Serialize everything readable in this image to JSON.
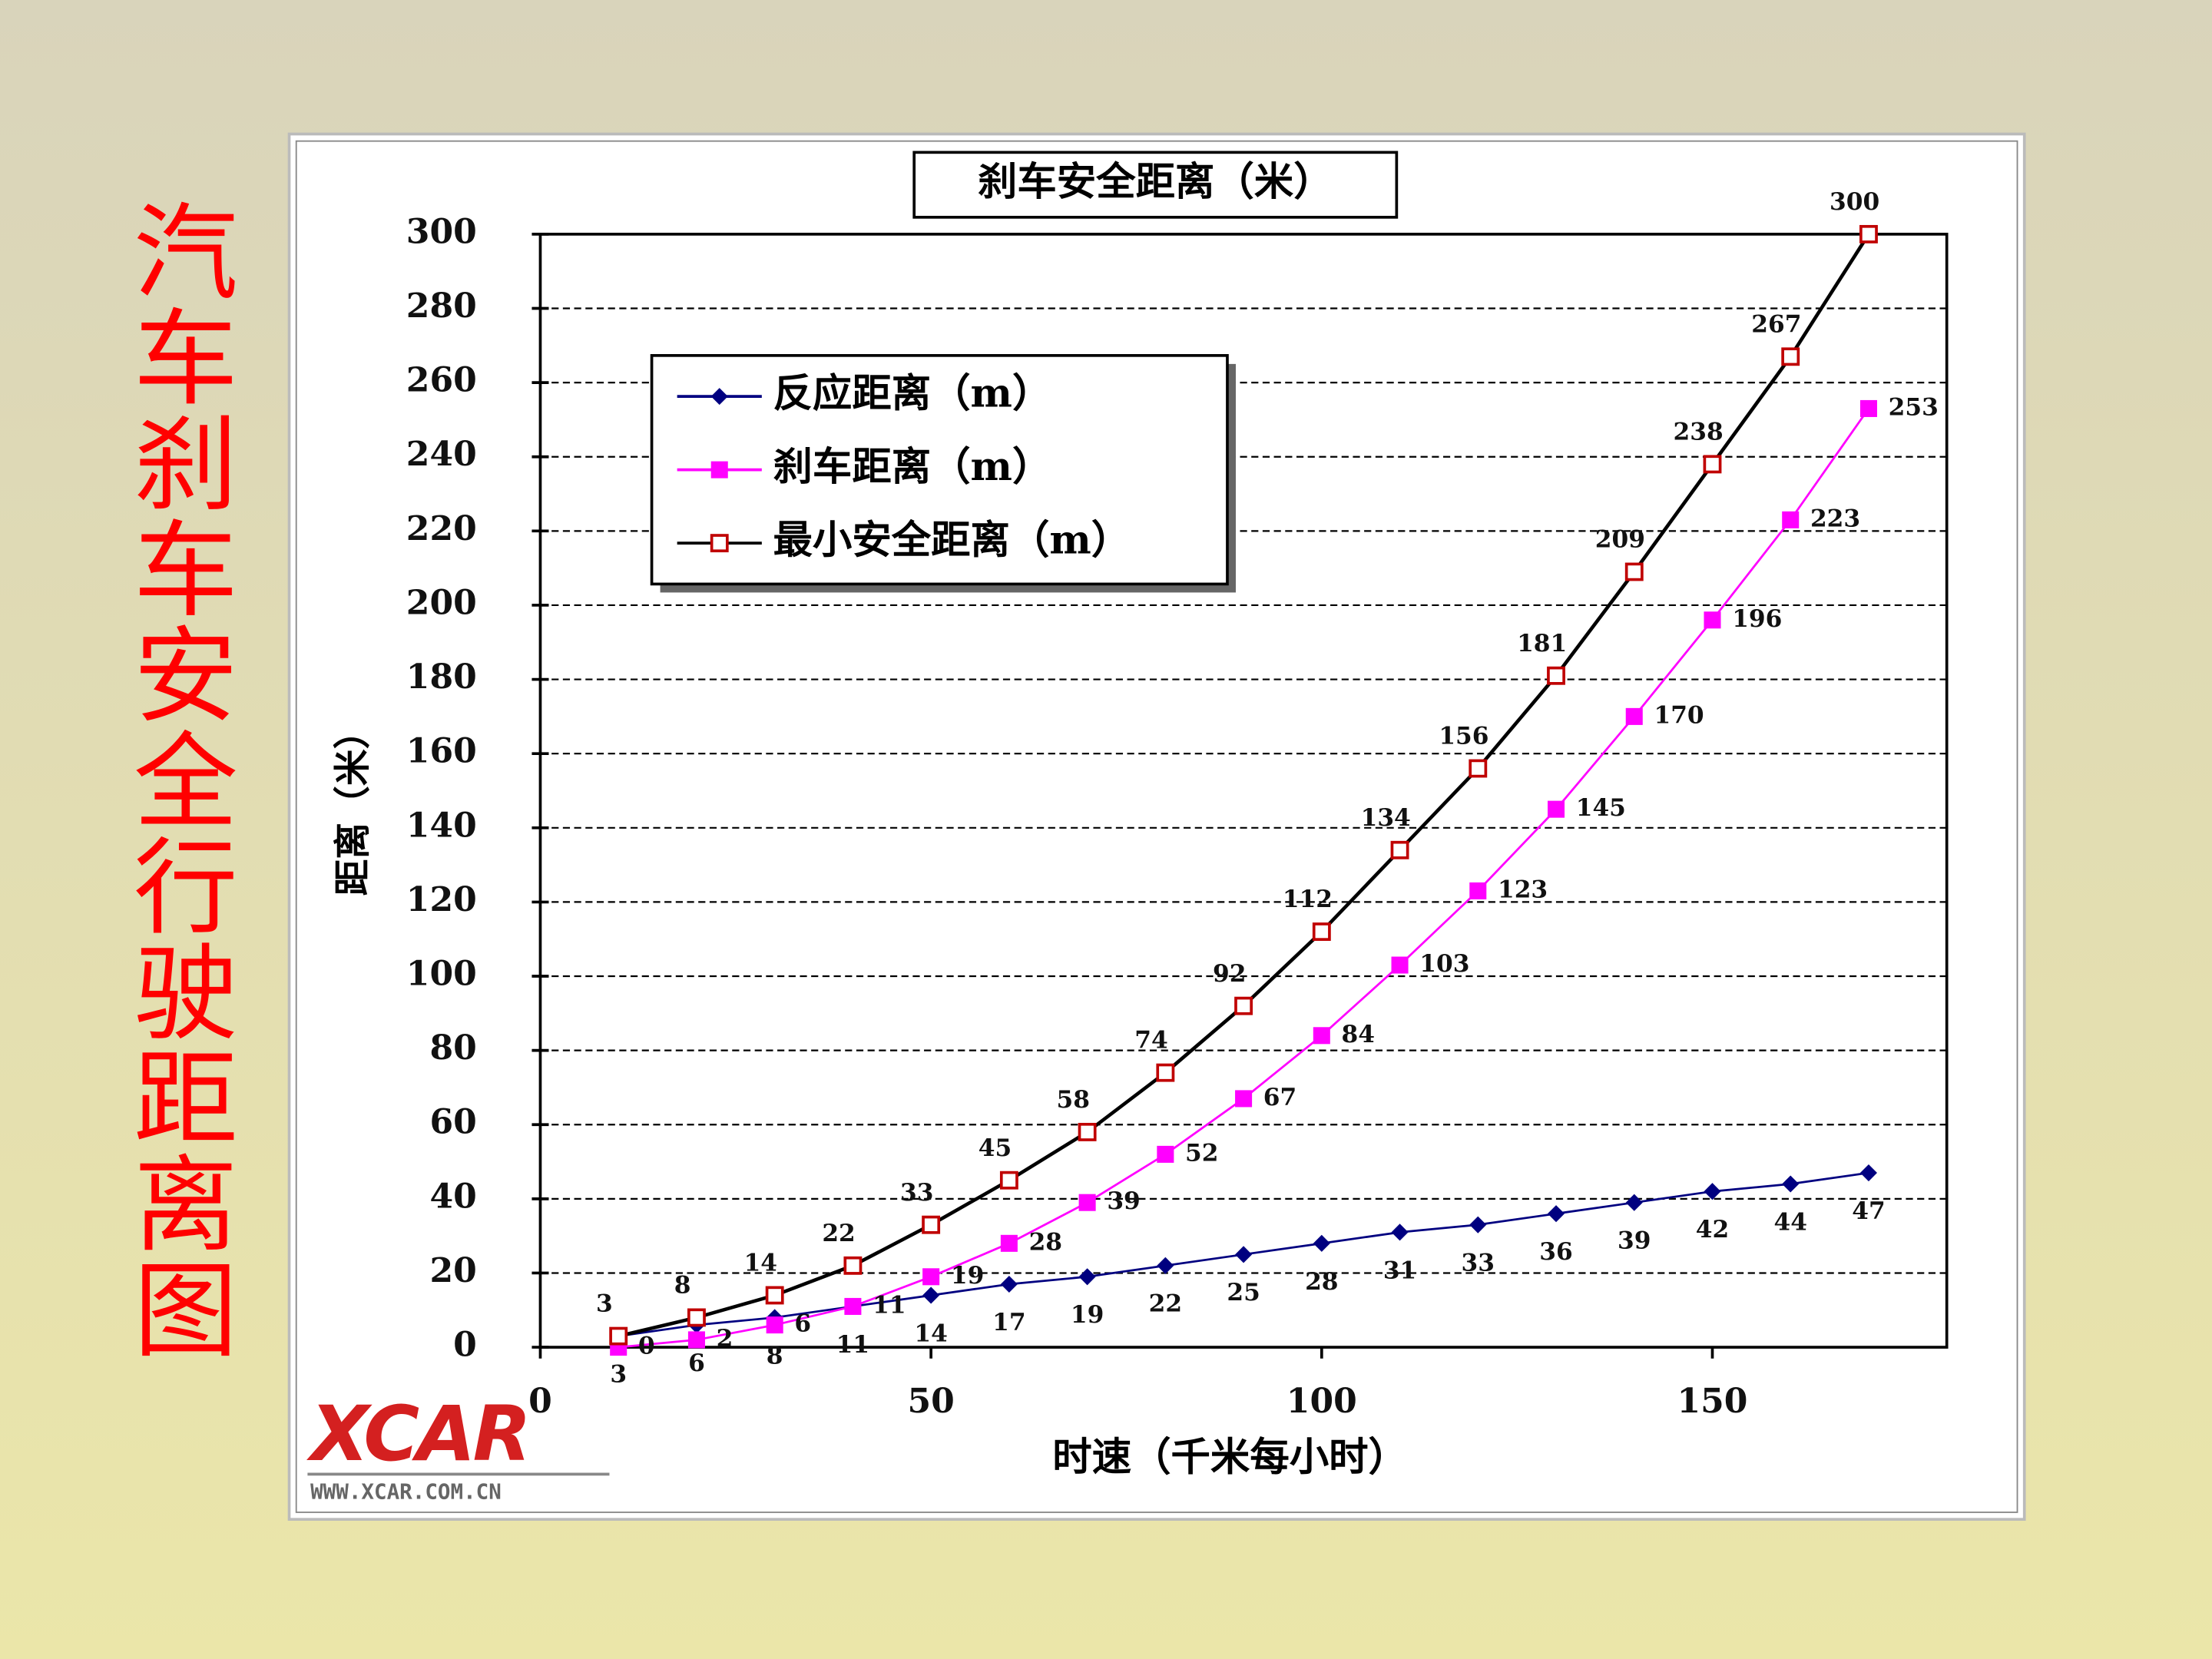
{
  "slide_title": "汽车刹车安全行驶距离图",
  "logo": {
    "name": "XCAR",
    "url": "WWW.XCAR.COM.CN"
  },
  "chart_data": {
    "type": "line",
    "title": "刹车安全距离（米）",
    "x_label": "时速（千米每小时）",
    "y_label": "距离（米）",
    "x": [
      10,
      20,
      30,
      40,
      50,
      60,
      70,
      80,
      90,
      100,
      110,
      120,
      130,
      140,
      150,
      160,
      170
    ],
    "series": [
      {
        "name": "反应距离（m）",
        "color": "#000080",
        "marker": "diamond",
        "marker_color": "#000080",
        "values": [
          3,
          6,
          8,
          11,
          14,
          17,
          19,
          22,
          25,
          28,
          31,
          33,
          36,
          39,
          42,
          44,
          47
        ]
      },
      {
        "name": "刹车距离（m）",
        "color": "#ff00ff",
        "marker": "square",
        "marker_color": "#ff00ff",
        "values": [
          0,
          2,
          6,
          11,
          19,
          28,
          39,
          52,
          67,
          84,
          103,
          123,
          145,
          170,
          196,
          223,
          253
        ]
      },
      {
        "name": "最小安全距离（m）",
        "color": "#000000",
        "marker": "open-square",
        "marker_color": "#c00000",
        "values": [
          3,
          8,
          14,
          22,
          33,
          45,
          58,
          74,
          92,
          112,
          134,
          156,
          181,
          209,
          238,
          267,
          300
        ]
      }
    ],
    "xlim": [
      0,
      180
    ],
    "xticks": [
      0,
      50,
      100,
      150
    ],
    "ylim": [
      0,
      300
    ],
    "yticks": [
      0,
      20,
      40,
      60,
      80,
      100,
      120,
      140,
      160,
      180,
      200,
      220,
      240,
      260,
      280,
      300
    ],
    "grid": true,
    "legend": "upper left"
  }
}
